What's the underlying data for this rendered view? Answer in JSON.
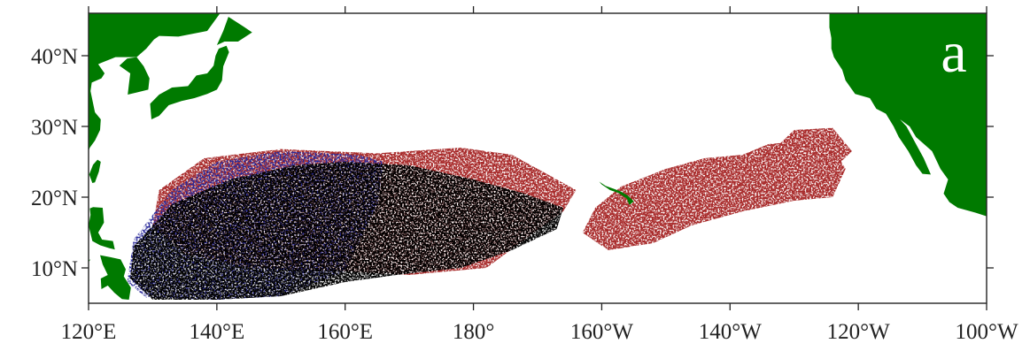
{
  "panel_label": "a",
  "colors": {
    "land": "#007a00",
    "ocean": "#ffffff",
    "red_density": "#a82a2a",
    "blue_density": "#2b2b9a",
    "overlap": "#000000",
    "frame": "#222222"
  },
  "axes": {
    "lon_range": [
      120,
      260
    ],
    "lat_range": [
      5,
      46
    ],
    "x_ticks": [
      {
        "lon": 120,
        "label": "120°E"
      },
      {
        "lon": 140,
        "label": "140°E"
      },
      {
        "lon": 160,
        "label": "160°E"
      },
      {
        "lon": 180,
        "label": "180°"
      },
      {
        "lon": 200,
        "label": "160°W"
      },
      {
        "lon": 220,
        "label": "140°W"
      },
      {
        "lon": 240,
        "label": "120°W"
      },
      {
        "lon": 260,
        "label": "100°W"
      }
    ],
    "y_ticks": [
      {
        "lat": 10,
        "label": "10°N"
      },
      {
        "lat": 20,
        "label": "20°N"
      },
      {
        "lat": 30,
        "label": "30°N"
      },
      {
        "lat": 40,
        "label": "40°N"
      }
    ]
  },
  "land_masses": [
    {
      "name": "japan",
      "points": [
        [
          129.8,
          31.0
        ],
        [
          131.0,
          31.5
        ],
        [
          132.5,
          33.0
        ],
        [
          134.5,
          33.6
        ],
        [
          136.5,
          34.0
        ],
        [
          138.5,
          34.6
        ],
        [
          140.0,
          35.2
        ],
        [
          140.8,
          36.5
        ],
        [
          141.0,
          38.5
        ],
        [
          141.9,
          40.5
        ],
        [
          141.5,
          41.4
        ],
        [
          140.3,
          41.0
        ],
        [
          139.8,
          40.0
        ],
        [
          139.5,
          38.6
        ],
        [
          138.5,
          37.5
        ],
        [
          136.8,
          37.2
        ],
        [
          135.5,
          35.7
        ],
        [
          133.0,
          35.5
        ],
        [
          131.0,
          34.5
        ],
        [
          129.6,
          33.2
        ]
      ]
    },
    {
      "name": "hokkaido",
      "points": [
        [
          140.0,
          41.5
        ],
        [
          141.2,
          42.0
        ],
        [
          143.3,
          42.0
        ],
        [
          145.5,
          43.3
        ],
        [
          144.2,
          44.1
        ],
        [
          141.8,
          45.5
        ],
        [
          141.0,
          43.5
        ]
      ]
    },
    {
      "name": "korea",
      "points": [
        [
          126.1,
          34.5
        ],
        [
          127.5,
          34.8
        ],
        [
          129.3,
          35.2
        ],
        [
          129.5,
          36.8
        ],
        [
          128.6,
          38.5
        ],
        [
          127.5,
          39.8
        ],
        [
          126.0,
          39.6
        ],
        [
          124.8,
          38.6
        ],
        [
          126.5,
          37.5
        ],
        [
          126.3,
          36.0
        ]
      ]
    },
    {
      "name": "asia-mainland",
      "points": [
        [
          120,
          46
        ],
        [
          140.5,
          46
        ],
        [
          138.5,
          43.5
        ],
        [
          134.0,
          42.7
        ],
        [
          131.0,
          42.8
        ],
        [
          130.2,
          42.3
        ],
        [
          129.0,
          41.0
        ],
        [
          127.5,
          39.8
        ],
        [
          125.0,
          39.8
        ],
        [
          124.2,
          39.8
        ],
        [
          122.0,
          39.0
        ],
        [
          121.5,
          38.8
        ],
        [
          122.5,
          37.5
        ],
        [
          122.0,
          36.8
        ],
        [
          120.5,
          36.2
        ],
        [
          120.3,
          35.0
        ],
        [
          121.0,
          32.0
        ],
        [
          121.9,
          31.0
        ],
        [
          121.8,
          29.5
        ],
        [
          121.0,
          28.0
        ],
        [
          120.2,
          27.0
        ],
        [
          120,
          26.5
        ]
      ]
    },
    {
      "name": "taiwan",
      "points": [
        [
          120.1,
          23.2
        ],
        [
          120.6,
          22.0
        ],
        [
          121.0,
          22.1
        ],
        [
          121.6,
          23.6
        ],
        [
          121.9,
          25.0
        ],
        [
          121.4,
          25.3
        ],
        [
          120.7,
          24.6
        ]
      ]
    },
    {
      "name": "luzon",
      "points": [
        [
          120.2,
          18.4
        ],
        [
          120.7,
          18.6
        ],
        [
          122.2,
          18.5
        ],
        [
          122.4,
          16.4
        ],
        [
          121.5,
          15.0
        ],
        [
          122.1,
          14.0
        ],
        [
          123.8,
          13.8
        ],
        [
          124.1,
          12.6
        ],
        [
          123.2,
          12.8
        ],
        [
          121.8,
          13.2
        ],
        [
          120.6,
          13.8
        ],
        [
          120.0,
          16.0
        ],
        [
          120.3,
          17.5
        ]
      ]
    },
    {
      "name": "visayas",
      "points": [
        [
          121.8,
          11.8
        ],
        [
          123.5,
          11.5
        ],
        [
          125.0,
          11.2
        ],
        [
          125.8,
          9.8
        ],
        [
          125.5,
          8.8
        ],
        [
          126.6,
          7.2
        ],
        [
          126.3,
          5.5
        ],
        [
          125.2,
          5.6
        ],
        [
          124.0,
          6.5
        ],
        [
          123.0,
          7.5
        ],
        [
          122.0,
          7.0
        ],
        [
          121.9,
          8.5
        ],
        [
          123.0,
          9.0
        ],
        [
          122.2,
          10.5
        ]
      ]
    },
    {
      "name": "palawan",
      "points": [
        [
          117.5,
          8.0
        ],
        [
          119.5,
          10.2
        ],
        [
          120.3,
          11.2
        ],
        [
          119.7,
          11.0
        ],
        [
          118.0,
          9.2
        ]
      ]
    },
    {
      "name": "north-america",
      "points": [
        [
          260,
          17.3
        ],
        [
          258.3,
          17.8
        ],
        [
          255.5,
          18.5
        ],
        [
          254.2,
          19.3
        ],
        [
          253.3,
          20.5
        ],
        [
          254.0,
          22.5
        ],
        [
          252.8,
          24.0
        ],
        [
          251.5,
          26.5
        ],
        [
          249.0,
          28.5
        ],
        [
          248.0,
          30.0
        ],
        [
          246.5,
          31.0
        ],
        [
          247.5,
          30.0
        ],
        [
          249.0,
          27.5
        ],
        [
          250.2,
          25.5
        ],
        [
          251.3,
          23.2
        ],
        [
          250.0,
          23.3
        ],
        [
          249.0,
          24.5
        ],
        [
          247.8,
          26.5
        ],
        [
          246.3,
          28.5
        ],
        [
          245.5,
          30.0
        ],
        [
          244.3,
          31.8
        ],
        [
          242.8,
          32.5
        ],
        [
          241.8,
          34.0
        ],
        [
          239.5,
          34.6
        ],
        [
          238.0,
          36.5
        ],
        [
          237.5,
          38.0
        ],
        [
          236.2,
          39.8
        ],
        [
          235.8,
          41.0
        ],
        [
          235.8,
          42.5
        ],
        [
          235.5,
          44.0
        ],
        [
          235.5,
          46
        ],
        [
          260,
          46
        ]
      ]
    }
  ],
  "islands": [
    {
      "name": "hawaii",
      "points": [
        [
          199.6,
          22.2
        ],
        [
          200.6,
          21.6
        ],
        [
          201.8,
          21.2
        ],
        [
          203.0,
          20.8
        ],
        [
          204.1,
          20.2
        ],
        [
          205.0,
          19.4
        ],
        [
          204.3,
          18.9
        ],
        [
          203.9,
          19.8
        ],
        [
          202.6,
          20.6
        ],
        [
          201.3,
          21.0
        ],
        [
          200.0,
          21.8
        ]
      ]
    }
  ],
  "density_regions": [
    {
      "layer": "red",
      "polygons": [
        [
          [
            138,
            25.5
          ],
          [
            150,
            26.8
          ],
          [
            165,
            26.2
          ],
          [
            178,
            27.0
          ],
          [
            186,
            26.0
          ],
          [
            192,
            23.0
          ],
          [
            196,
            21.0
          ],
          [
            194,
            18.0
          ],
          [
            188,
            14.0
          ],
          [
            182,
            10.0
          ],
          [
            170,
            9.0
          ],
          [
            160,
            9.5
          ],
          [
            145,
            10.0
          ],
          [
            135,
            12.0
          ],
          [
            130,
            16.0
          ],
          [
            131,
            21.0
          ]
        ],
        [
          [
            203,
            21.5
          ],
          [
            210,
            24.0
          ],
          [
            216,
            25.5
          ],
          [
            222,
            26.0
          ],
          [
            226,
            27.5
          ],
          [
            232,
            28.0
          ],
          [
            236,
            27.0
          ],
          [
            238,
            24.0
          ],
          [
            236,
            20.0
          ],
          [
            230,
            19.5
          ],
          [
            222,
            18.0
          ],
          [
            214,
            16.0
          ],
          [
            208,
            13.5
          ],
          [
            201,
            12.5
          ],
          [
            197,
            15.0
          ],
          [
            199,
            18.5
          ]
        ],
        [
          [
            226,
            26.0
          ],
          [
            230,
            29.5
          ],
          [
            236,
            29.8
          ],
          [
            239,
            26.5
          ],
          [
            235,
            23.0
          ],
          [
            229,
            23.5
          ]
        ]
      ]
    },
    {
      "layer": "blue",
      "polygons": [
        [
          [
            127,
            14.0
          ],
          [
            133,
            21.0
          ],
          [
            140,
            25.0
          ],
          [
            150,
            26.5
          ],
          [
            162,
            26.0
          ],
          [
            166,
            25.0
          ],
          [
            165,
            19.0
          ],
          [
            160,
            9.5
          ],
          [
            150,
            6.0
          ],
          [
            140,
            5.5
          ],
          [
            129,
            5.8
          ],
          [
            126,
            8.0
          ]
        ]
      ]
    },
    {
      "layer": "black",
      "polygons": [
        [
          [
            127,
            13.0
          ],
          [
            133,
            19.0
          ],
          [
            142,
            22.5
          ],
          [
            152,
            24.5
          ],
          [
            160,
            25.0
          ],
          [
            170,
            24.5
          ],
          [
            180,
            22.5
          ],
          [
            188,
            20.5
          ],
          [
            194,
            18.5
          ],
          [
            193,
            15.5
          ],
          [
            186,
            12.5
          ],
          [
            178,
            10.0
          ],
          [
            168,
            9.0
          ],
          [
            160,
            8.0
          ],
          [
            150,
            6.0
          ],
          [
            140,
            5.5
          ],
          [
            130,
            5.5
          ],
          [
            126.5,
            8.5
          ]
        ]
      ]
    }
  ]
}
